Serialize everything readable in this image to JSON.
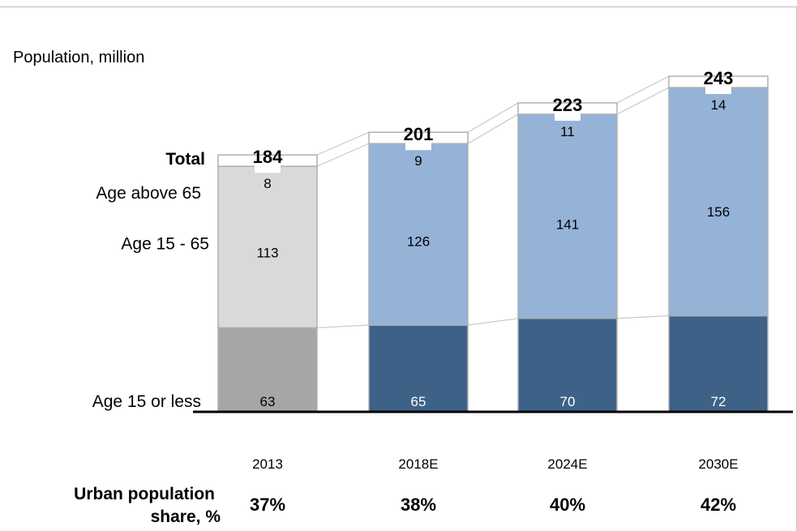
{
  "chart_data": {
    "type": "bar",
    "stacked": true,
    "title": "Population, million",
    "categories": [
      "2013",
      "2018E",
      "2024E",
      "2030E"
    ],
    "series": [
      {
        "name": "Age 15 or less",
        "values": [
          63,
          65,
          70,
          72
        ]
      },
      {
        "name": "Age 15 - 65",
        "values": [
          113,
          126,
          141,
          156
        ]
      },
      {
        "name": "Age above 65",
        "values": [
          8,
          9,
          11,
          14
        ]
      }
    ],
    "totals_label": "Total",
    "totals": [
      184,
      201,
      223,
      243
    ],
    "ylim": [
      0,
      243
    ],
    "grid": false,
    "legend": "left, row labels",
    "colors": {
      "historical_base": "#a6a6a6",
      "historical_upper": "#d9d9d9",
      "forecast_base": "#3e6188",
      "forecast_upper": "#95b3d7",
      "bar_border": "#b0b0b0",
      "connector": "#c8c8c8",
      "axis": "#000000"
    }
  },
  "footer": {
    "label_line1": "Urban population",
    "label_line2": "share, %",
    "values": [
      "37%",
      "38%",
      "40%",
      "42%"
    ]
  }
}
